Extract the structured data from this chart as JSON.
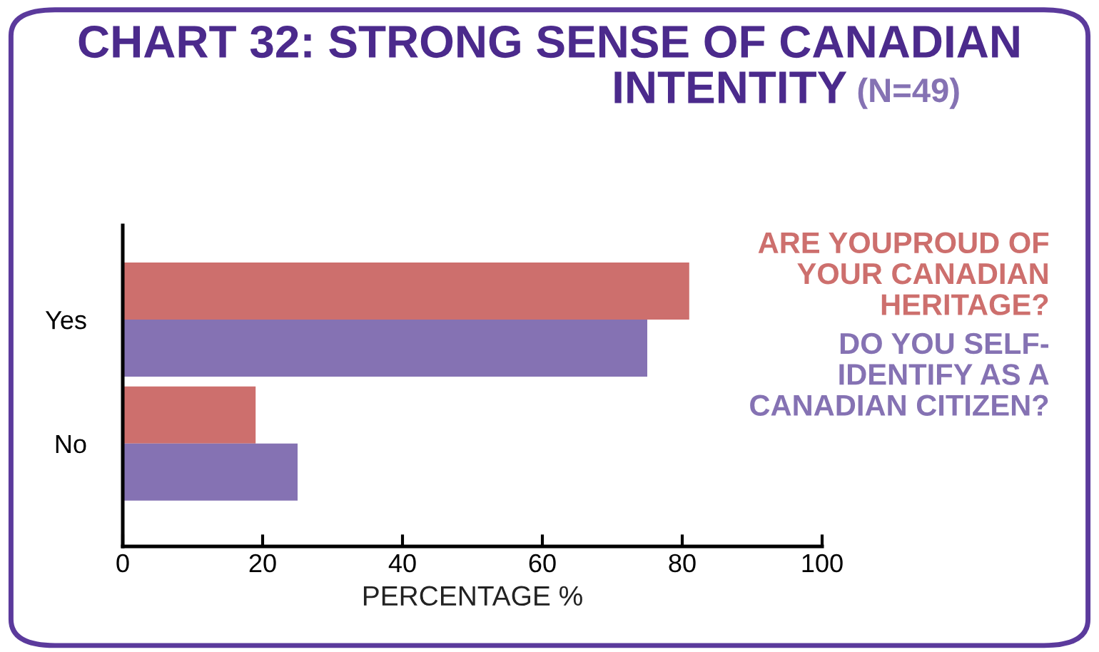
{
  "chart_data": {
    "type": "bar",
    "orientation": "horizontal",
    "title": "CHART 32: STRONG SENSE OF CANADIAN\nINTENTITY",
    "subtitle": "(N=49)",
    "xlabel": "PERCENTAGE %",
    "categories": [
      "Yes",
      "No"
    ],
    "series": [
      {
        "name": "ARE YOUPROUD OF\nYOUR CANADIAN\nHERITAGE?",
        "color": "#cd6f6d",
        "values": [
          81,
          19
        ]
      },
      {
        "name": "DO YOU SELF-\nIDENTIFY AS A\nCANADIAN CITIZEN?",
        "color": "#8572b3",
        "values": [
          75,
          25
        ]
      }
    ],
    "xlim": [
      0,
      100
    ],
    "xticks": [
      0,
      20,
      40,
      60,
      80,
      100
    ],
    "grid": false,
    "legend": "right"
  }
}
